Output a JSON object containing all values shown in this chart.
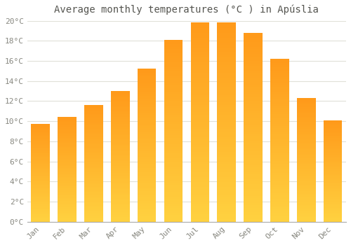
{
  "title": "Average monthly temperatures (°C ) in Apúslia",
  "months": [
    "Jan",
    "Feb",
    "Mar",
    "Apr",
    "May",
    "Jun",
    "Jul",
    "Aug",
    "Sep",
    "Oct",
    "Nov",
    "Dec"
  ],
  "values": [
    9.7,
    10.4,
    11.6,
    13.0,
    15.2,
    18.1,
    19.8,
    19.8,
    18.8,
    16.2,
    12.3,
    10.1
  ],
  "ylim": [
    0,
    20
  ],
  "yticks": [
    0,
    2,
    4,
    6,
    8,
    10,
    12,
    14,
    16,
    18,
    20
  ],
  "bar_color_bottom": "#FFD040",
  "bar_color_top": "#FFA020",
  "background_color": "#FFFFFF",
  "grid_color": "#E0E0D8",
  "title_fontsize": 10,
  "tick_fontsize": 8,
  "tick_color": "#888880",
  "title_color": "#555550"
}
